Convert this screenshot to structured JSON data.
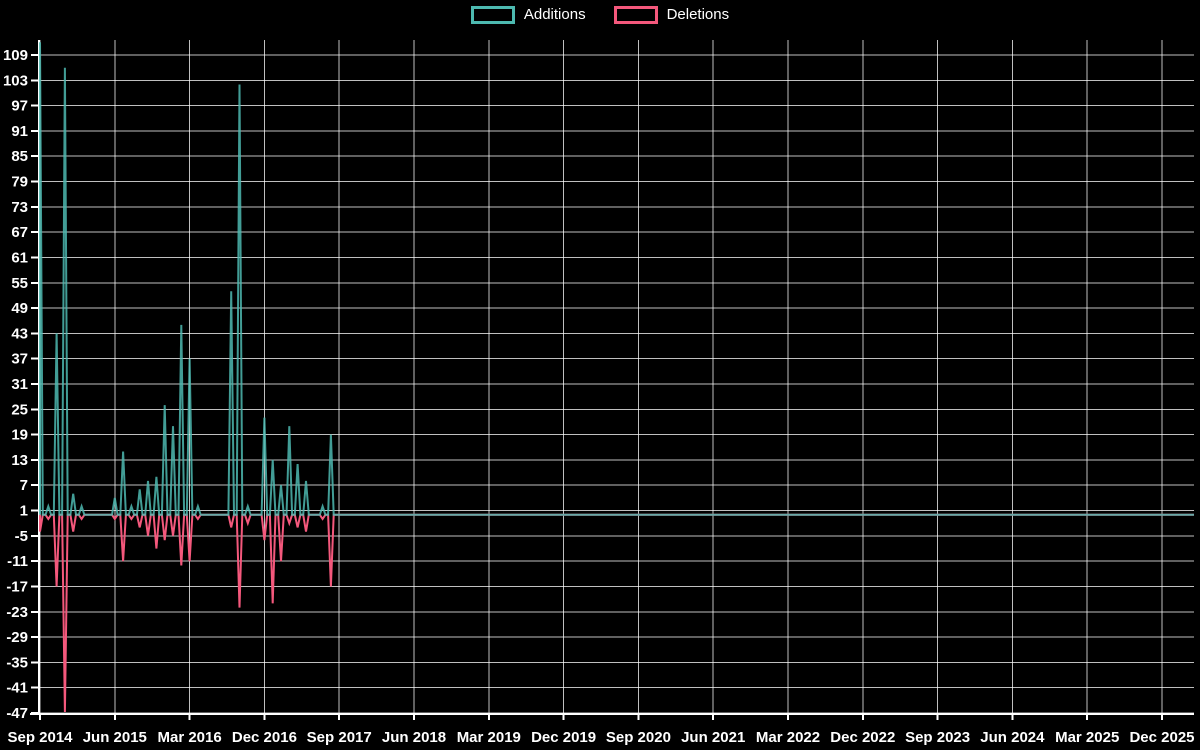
{
  "chart_data": {
    "type": "line",
    "title": "",
    "background": "#000000",
    "grid": true,
    "legend_position": "top-center",
    "text_color": "#ffffff",
    "gridline_color": "rgba(255,255,255,0.75)",
    "y_ticks": [
      109,
      103,
      97,
      91,
      85,
      79,
      73,
      67,
      61,
      55,
      49,
      43,
      37,
      31,
      25,
      19,
      13,
      7,
      1,
      -5,
      -11,
      -17,
      -23,
      -29,
      -35,
      -41,
      -47
    ],
    "ylim": [
      -47,
      112.5
    ],
    "x_tick_labels": [
      "Sep 2014",
      "Jun 2015",
      "Mar 2016",
      "Dec 2016",
      "Sep 2017",
      "Jun 2018",
      "Mar 2019",
      "Dec 2019",
      "Sep 2020",
      "Jun 2021",
      "Mar 2022",
      "Dec 2022",
      "Sep 2023",
      "Jun 2024",
      "Mar 2025",
      "Dec 2025"
    ],
    "months_per_x_tick": 9,
    "series_start_month": "Sep 2014",
    "series_zero_through": "Dec 2025",
    "series": [
      {
        "name": "Additions",
        "color": "#4db9b0",
        "values": [
          112,
          2,
          43,
          106,
          5,
          2,
          0,
          0,
          0,
          4,
          15,
          2,
          6,
          8,
          9,
          26,
          21,
          45,
          37,
          2,
          0,
          0,
          0,
          53,
          102,
          2,
          0,
          23,
          13,
          7,
          21,
          12,
          8,
          0,
          2,
          19,
          0,
          0,
          0,
          0
        ]
      },
      {
        "name": "Deletions",
        "color": "#f4587c",
        "values": [
          -4,
          -1,
          -17,
          -47,
          -4,
          -1,
          0,
          0,
          0,
          -1,
          -11,
          -1,
          -3,
          -5,
          -8,
          -6,
          -5,
          -12,
          -11,
          -1,
          0,
          0,
          0,
          -3,
          -22,
          -2,
          0,
          -6,
          -21,
          -11,
          -2,
          -3,
          -4,
          0,
          -1,
          -17,
          0,
          0,
          0,
          0
        ]
      }
    ]
  }
}
